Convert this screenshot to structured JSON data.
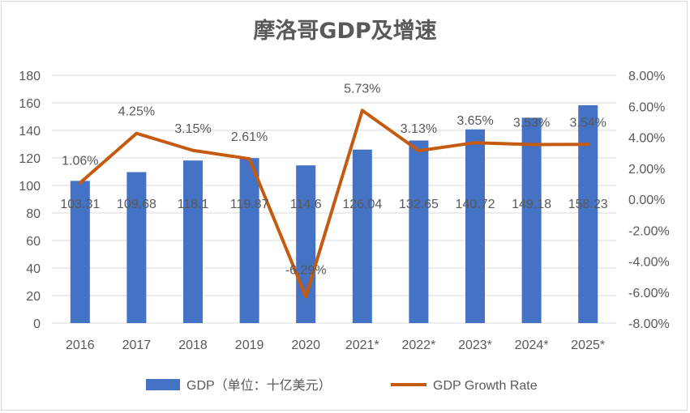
{
  "chart_data": {
    "type": "bar+line",
    "title": "摩洛哥GDP及增速",
    "categories": [
      "2016",
      "2017",
      "2018",
      "2019",
      "2020",
      "2021*",
      "2022*",
      "2023*",
      "2024*",
      "2025*"
    ],
    "series": [
      {
        "name": "GDP（单位：十亿美元）",
        "type": "bar",
        "axis": "left",
        "color": "#4472c4",
        "values": [
          103.31,
          109.68,
          118.1,
          119.87,
          114.6,
          126.04,
          132.65,
          140.72,
          149.18,
          158.23
        ],
        "labels": [
          "103.31",
          "109.68",
          "118.1",
          "119.87",
          "114.6",
          "126.04",
          "132.65",
          "140.72",
          "149.18",
          "158.23"
        ]
      },
      {
        "name": "GDP Growth Rate",
        "type": "line",
        "axis": "right",
        "color": "#c55a11",
        "values": [
          1.06,
          4.25,
          3.15,
          2.61,
          -6.29,
          5.73,
          3.13,
          3.65,
          3.53,
          3.54
        ],
        "labels": [
          "1.06%",
          "4.25%",
          "3.15%",
          "2.61%",
          "-6.29%",
          "5.73%",
          "3.13%",
          "3.65%",
          "3.53%",
          "3.54%"
        ]
      }
    ],
    "y_left": {
      "min": 0,
      "max": 180,
      "step": 20,
      "tick_labels": [
        "0",
        "20",
        "40",
        "60",
        "80",
        "100",
        "120",
        "140",
        "160",
        "180"
      ]
    },
    "y_right": {
      "min": -8,
      "max": 8,
      "step": 2,
      "tick_labels": [
        "-8.00%",
        "-6.00%",
        "-4.00%",
        "-2.00%",
        "0.00%",
        "2.00%",
        "4.00%",
        "6.00%",
        "8.00%"
      ]
    },
    "grid": true,
    "legend_position": "bottom",
    "text_color": "#595959",
    "grid_color": "#d9d9d9"
  }
}
